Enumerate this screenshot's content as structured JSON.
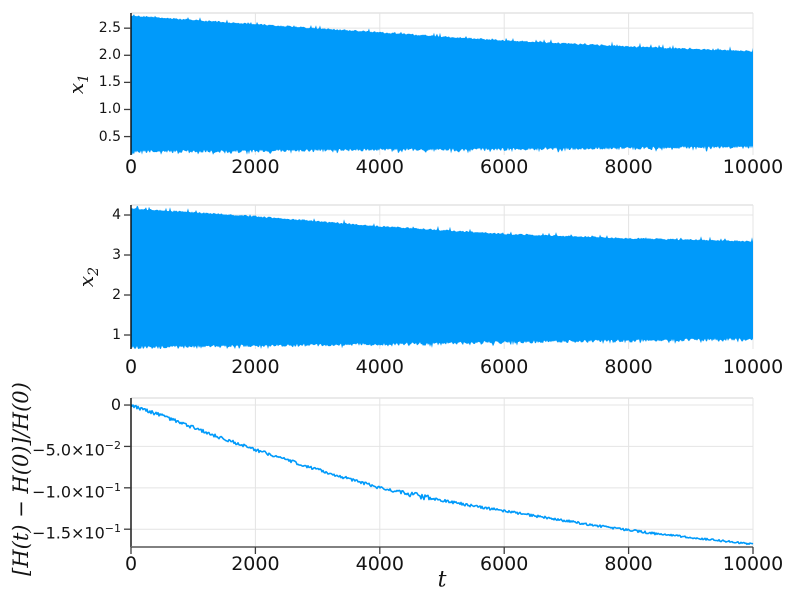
{
  "style": {
    "background": "#ffffff",
    "series_color": "#009AFA",
    "grid_color": "#e4e4e4",
    "frame_color": "#d4d4d4",
    "axis_color": "#0a0a0a",
    "tick_mark_color": "#3c3c3c",
    "bottom_axis_color": "#6f6f6f",
    "text_color": "#141414"
  },
  "chart_data": [
    {
      "type": "area",
      "description": "dense oscillation band of x1(t) with slowly decaying amplitude",
      "ylabel_base": "x",
      "ylabel_sub": "1",
      "xlabel": "",
      "xlim": [
        0,
        10000
      ],
      "ylim": [
        0.16,
        2.78
      ],
      "x_ticks": [
        0,
        2000,
        4000,
        6000,
        8000,
        10000
      ],
      "x_tick_labels": [
        "0",
        "2000",
        "4000",
        "6000",
        "8000",
        "10000"
      ],
      "y_ticks": [
        0.5,
        1.0,
        1.5,
        2.0,
        2.5
      ],
      "y_tick_labels": [
        "0.5",
        "1.0",
        "1.5",
        "2.0",
        "2.5"
      ],
      "grid": true,
      "legend": "none",
      "series": [
        {
          "name": "x1-oscillation-envelope",
          "kind": "oscillation-band",
          "color": "#009AFA",
          "x": [
            0,
            2000,
            4000,
            6000,
            8000,
            10000
          ],
          "upper": [
            2.72,
            2.56,
            2.41,
            2.26,
            2.15,
            2.06
          ],
          "lower": [
            0.27,
            0.28,
            0.3,
            0.31,
            0.33,
            0.35
          ]
        }
      ]
    },
    {
      "type": "area",
      "description": "dense oscillation band of x2(t) with slowly decaying amplitude",
      "ylabel_base": "x",
      "ylabel_sub": "2",
      "xlabel": "",
      "xlim": [
        0,
        10000
      ],
      "ylim": [
        0.65,
        4.25
      ],
      "x_ticks": [
        0,
        2000,
        4000,
        6000,
        8000,
        10000
      ],
      "x_tick_labels": [
        "0",
        "2000",
        "4000",
        "6000",
        "8000",
        "10000"
      ],
      "y_ticks": [
        1,
        2,
        3,
        4
      ],
      "y_tick_labels": [
        "1",
        "2",
        "3",
        "4"
      ],
      "grid": true,
      "legend": "none",
      "series": [
        {
          "name": "x2-oscillation-envelope",
          "kind": "oscillation-band",
          "color": "#009AFA",
          "x": [
            0,
            2000,
            4000,
            6000,
            8000,
            10000
          ],
          "upper": [
            4.15,
            3.95,
            3.7,
            3.51,
            3.4,
            3.33
          ],
          "lower": [
            0.75,
            0.79,
            0.83,
            0.88,
            0.92,
            0.95
          ]
        }
      ]
    },
    {
      "type": "line",
      "description": "relative energy drift [H(t) - H(0)]/H(0), noisy monotone decay",
      "ylabel": "[H(t) − H(0)]/H(0)",
      "xlabel": "t",
      "xlim": [
        0,
        10000
      ],
      "ylim": [
        -0.1715,
        0.0085
      ],
      "x_ticks": [
        0,
        2000,
        4000,
        6000,
        8000,
        10000
      ],
      "x_tick_labels": [
        "0",
        "2000",
        "4000",
        "6000",
        "8000",
        "10000"
      ],
      "y_ticks": [
        0,
        -0.05,
        -0.1,
        -0.15
      ],
      "y_tick_labels": [
        "0",
        "−5.0×10^−2",
        "−1.0×10^−1",
        "−1.5×10^−1"
      ],
      "grid": true,
      "legend": "none",
      "series": [
        {
          "name": "relative-energy-error",
          "kind": "noisy-line",
          "color": "#009AFA",
          "x": [
            0,
            500,
            1000,
            1500,
            2000,
            2500,
            3000,
            3500,
            4000,
            4500,
            5000,
            5500,
            6000,
            6500,
            7000,
            7500,
            8000,
            8500,
            9000,
            9500,
            10000
          ],
          "y": [
            0,
            -0.013,
            -0.027,
            -0.041,
            -0.054,
            -0.066,
            -0.078,
            -0.089,
            -0.1,
            -0.108,
            -0.115,
            -0.122,
            -0.128,
            -0.134,
            -0.14,
            -0.146,
            -0.151,
            -0.156,
            -0.16,
            -0.164,
            -0.168
          ],
          "wobble_interval": [
            4300,
            4900
          ]
        }
      ]
    }
  ]
}
